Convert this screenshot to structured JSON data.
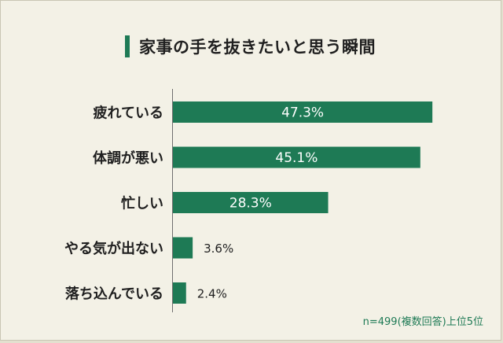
{
  "chart_data": {
    "type": "bar",
    "orientation": "horizontal",
    "title": "家事の手を抜きたいと思う瞬間",
    "categories": [
      "疲れている",
      "体調が悪い",
      "忙しい",
      "やる気が出ない",
      "落ち込んでいる"
    ],
    "values": [
      47.3,
      45.1,
      28.3,
      3.6,
      2.4
    ],
    "value_labels": [
      "47.3%",
      "45.1%",
      "28.3%",
      "3.6%",
      "2.4%"
    ],
    "unit": "%",
    "note": "n=499(複数回答)上位5位",
    "grid": false,
    "legend": "none",
    "colors": {
      "bar": "#1e7a55",
      "label_inside": "#ffffff",
      "label_outside": "#1f1f1f",
      "category_text": "#1f1f1f",
      "title_accent": "#1e7a55",
      "background": "#f3f1e6",
      "note": "#1e7a55"
    }
  }
}
